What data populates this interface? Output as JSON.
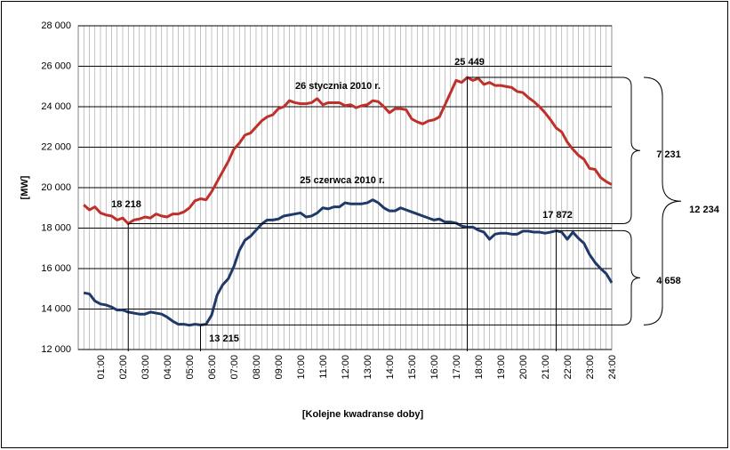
{
  "chart_data": {
    "type": "line",
    "ylabel": "[MW]",
    "xlabel": "[Kolejne kwadranse  doby]",
    "categories": [
      null,
      null,
      null,
      "01:00",
      null,
      null,
      null,
      "02:00",
      null,
      null,
      null,
      "03:00",
      null,
      null,
      null,
      "04:00",
      null,
      null,
      null,
      "05:00",
      null,
      null,
      null,
      "06:00",
      null,
      null,
      null,
      "07:00",
      null,
      null,
      null,
      "08:00",
      null,
      null,
      null,
      "09:00",
      null,
      null,
      null,
      "10:00",
      null,
      null,
      null,
      "11:00",
      null,
      null,
      null,
      "12:00",
      null,
      null,
      null,
      "13:00",
      null,
      null,
      null,
      "14:00",
      null,
      null,
      null,
      "15:00",
      null,
      null,
      null,
      "16:00",
      null,
      null,
      null,
      "17:00",
      null,
      null,
      null,
      "18:00",
      null,
      null,
      null,
      "19:00",
      null,
      null,
      null,
      "20:00",
      null,
      null,
      null,
      "21:00",
      null,
      null,
      null,
      "22:00",
      null,
      null,
      null,
      "23:00",
      null,
      null,
      null,
      "24:00"
    ],
    "series": [
      {
        "name": "26 stycznia 2010 r.",
        "color": "#c0302b",
        "values": [
          19150,
          18900,
          19050,
          18750,
          18650,
          18600,
          18400,
          18500,
          18218,
          18400,
          18450,
          18550,
          18500,
          18700,
          18600,
          18550,
          18700,
          18700,
          18800,
          19000,
          19350,
          19450,
          19400,
          19800,
          20300,
          20800,
          21300,
          21900,
          22200,
          22600,
          22700,
          23000,
          23300,
          23500,
          23600,
          23900,
          24000,
          24300,
          24200,
          24150,
          24150,
          24200,
          24400,
          24100,
          24200,
          24200,
          24200,
          24050,
          24100,
          23950,
          24050,
          24100,
          24300,
          24250,
          24000,
          23700,
          23900,
          23900,
          23850,
          23400,
          23250,
          23150,
          23300,
          23350,
          23500,
          24100,
          24700,
          25300,
          25200,
          25449,
          25300,
          25400,
          25100,
          25200,
          25050,
          25050,
          25000,
          24950,
          24750,
          24700,
          24450,
          24250,
          24000,
          23700,
          23350,
          22950,
          22750,
          22250,
          21900,
          21600,
          21400,
          20950,
          20900,
          20500,
          20300,
          20150
        ]
      },
      {
        "name": "25 czerwca 2010 r.",
        "color": "#1f3a68",
        "values": [
          14800,
          14750,
          14400,
          14250,
          14200,
          14100,
          13950,
          13950,
          13850,
          13800,
          13750,
          13750,
          13850,
          13800,
          13750,
          13600,
          13400,
          13250,
          13250,
          13200,
          13250,
          13215,
          13250,
          13700,
          14700,
          15200,
          15500,
          16100,
          16900,
          17400,
          17600,
          17900,
          18200,
          18400,
          18400,
          18450,
          18600,
          18650,
          18700,
          18750,
          18550,
          18600,
          18750,
          19000,
          18950,
          19050,
          19050,
          19250,
          19200,
          19200,
          19200,
          19250,
          19400,
          19250,
          19000,
          18850,
          18850,
          19000,
          18900,
          18800,
          18700,
          18600,
          18500,
          18400,
          18450,
          18300,
          18300,
          18250,
          18100,
          18050,
          18050,
          17900,
          17800,
          17450,
          17700,
          17750,
          17750,
          17700,
          17700,
          17850,
          17850,
          17800,
          17800,
          17750,
          17800,
          17872,
          17800,
          17450,
          17800,
          17500,
          17250,
          16700,
          16300,
          16000,
          15750,
          15300
        ]
      }
    ],
    "annotations": [
      "25 449",
      "18 218",
      "17 872",
      "13 215",
      "7 231",
      "12 234",
      "4 658"
    ],
    "ylim": [
      12000,
      28000
    ],
    "yticks": [
      {
        "value": 12000,
        "label": "12 000"
      },
      {
        "value": 14000,
        "label": "14 000"
      },
      {
        "value": 16000,
        "label": "16 000"
      },
      {
        "value": 18000,
        "label": "18 000"
      },
      {
        "value": 20000,
        "label": "20 000"
      },
      {
        "value": 22000,
        "label": "22 000"
      },
      {
        "value": 24000,
        "label": "24 000"
      },
      {
        "value": 26000,
        "label": "26 000"
      },
      {
        "value": 28000,
        "label": "28 000"
      }
    ],
    "grid": true
  }
}
